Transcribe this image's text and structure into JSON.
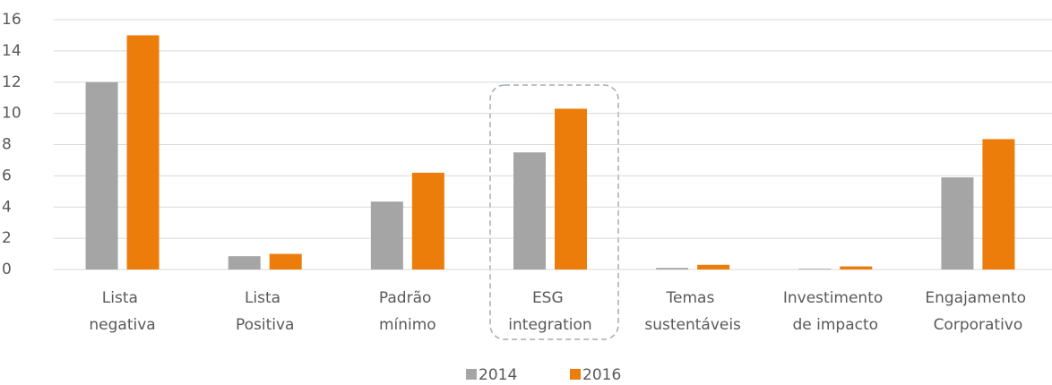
{
  "chart_data": {
    "type": "bar",
    "categories": [
      "Lista negativa",
      "Lista Positiva",
      "Padrão mínimo",
      "ESG integration",
      "Temas sustentáveis",
      "Investimento de impacto",
      "Engajamento Corporativo"
    ],
    "series": [
      {
        "name": "2014",
        "color": "#a5a5a5",
        "values": [
          12.0,
          0.85,
          4.35,
          7.5,
          0.1,
          0.05,
          5.9
        ]
      },
      {
        "name": "2016",
        "color": "#ed7d0b",
        "values": [
          15.0,
          1.0,
          6.2,
          10.3,
          0.3,
          0.2,
          8.35
        ]
      }
    ],
    "ylim": [
      0,
      16
    ],
    "yticks": [
      0,
      2,
      4,
      6,
      8,
      10,
      12,
      14,
      16
    ],
    "grid": true,
    "legend": "bottom"
  }
}
